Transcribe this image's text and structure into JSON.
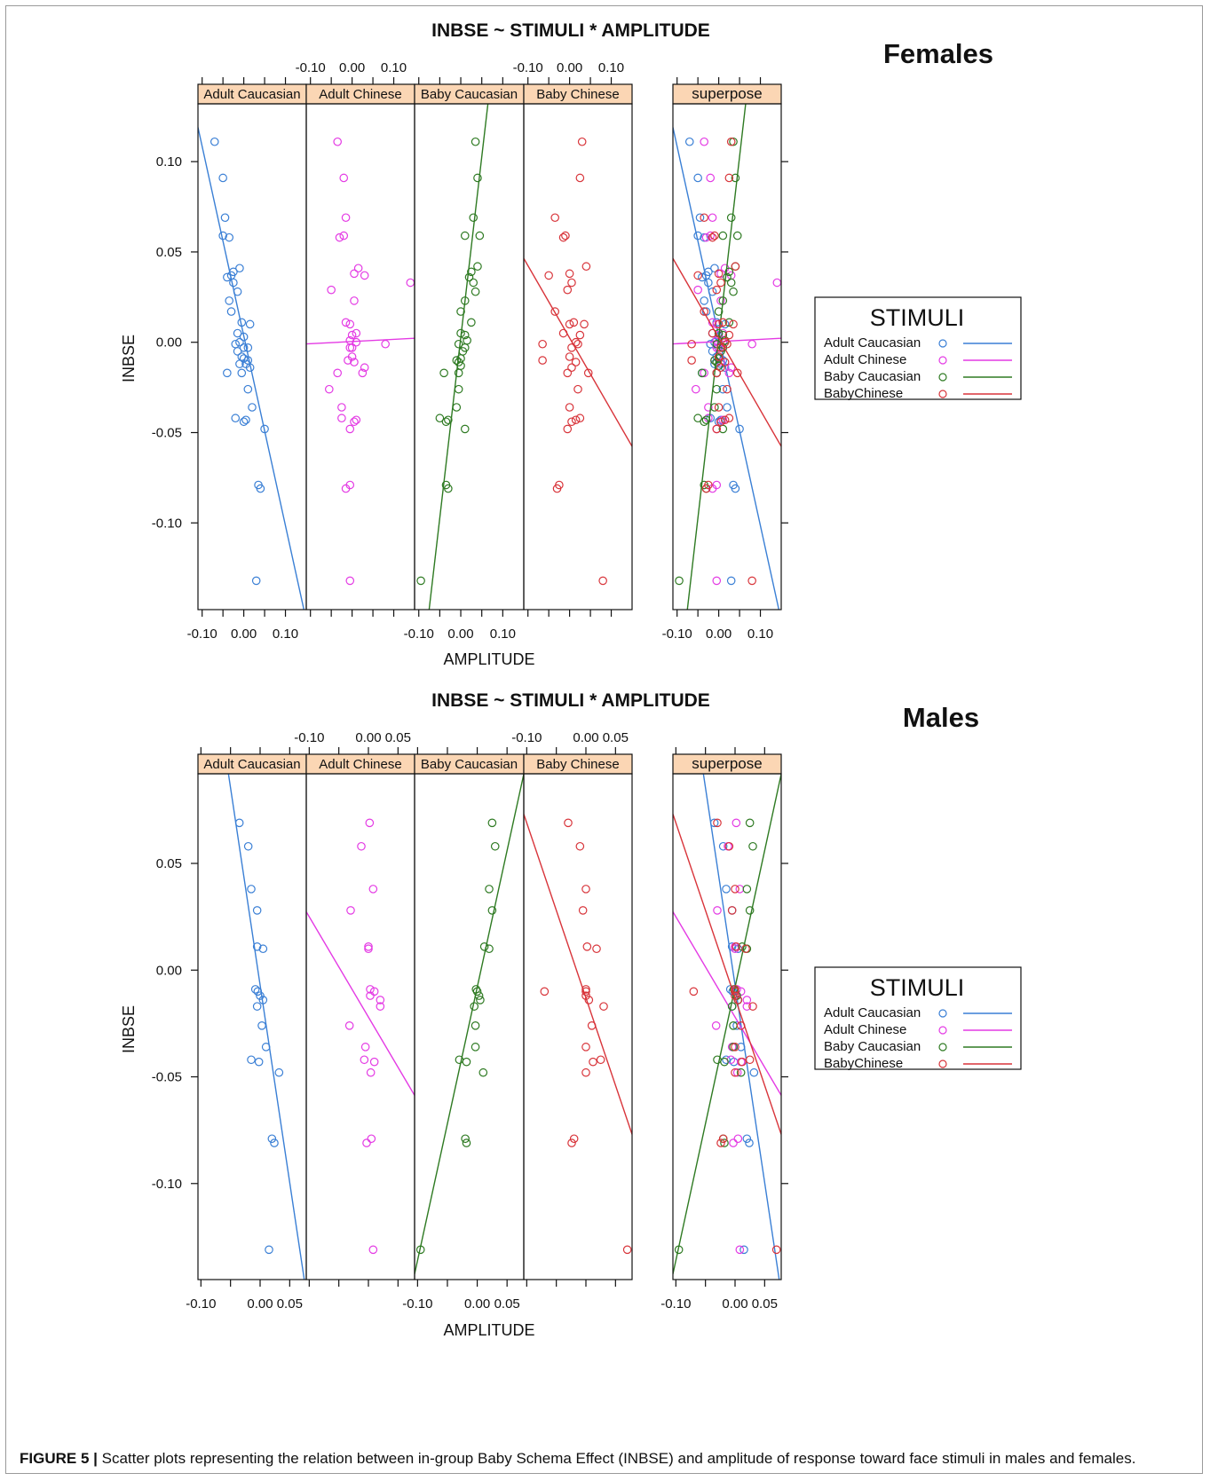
{
  "caption": {
    "label": "FIGURE 5 |",
    "text": "Scatter plots representing the relation between in-group Baby Schema Effect (INBSE) and amplitude of response toward face stimuli in males and females."
  },
  "colors": {
    "adult_caucasian": "#3a7fd5",
    "adult_chinese": "#e43ae4",
    "baby_caucasian": "#2e7a22",
    "baby_chinese": "#d8343a",
    "strip": "#fbd6b4"
  },
  "chart_data": [
    {
      "type": "scatter",
      "title": "INBSE ~ STIMULI * AMPLITUDE",
      "group_label": "Females",
      "xlabel": "AMPLITUDE",
      "ylabel": "INBSE",
      "xlim": [
        -0.11,
        0.15
      ],
      "ylim": [
        -0.148,
        0.132
      ],
      "x_ticks_text": [
        "-0.10",
        "0.00",
        "0.10"
      ],
      "y_ticks": [
        0.1,
        0.05,
        0.0,
        -0.05,
        -0.1
      ],
      "y_ticks_text": [
        "0.10",
        "0.05",
        "0.00",
        "-0.05",
        "-0.10"
      ],
      "panels": [
        "Adult Caucasian",
        "Adult Chinese",
        "Baby Caucasian",
        "Baby Chinese",
        "superpose"
      ],
      "legend": {
        "title": "STIMULI",
        "entries": [
          "Adult Caucasian",
          "Adult Chinese",
          "Baby Caucasian",
          "BabyChinese"
        ],
        "position": "right"
      },
      "series": [
        {
          "name": "Adult Caucasian",
          "line": {
            "intercept": 0.0035,
            "slope": -1.05
          },
          "points": [
            [
              -0.07,
              0.111
            ],
            [
              -0.05,
              0.091
            ],
            [
              -0.045,
              0.069
            ],
            [
              -0.05,
              0.059
            ],
            [
              -0.035,
              0.058
            ],
            [
              -0.04,
              0.036
            ],
            [
              -0.03,
              0.037
            ],
            [
              -0.025,
              0.039
            ],
            [
              -0.025,
              0.033
            ],
            [
              -0.015,
              0.028
            ],
            [
              -0.01,
              0.041
            ],
            [
              -0.035,
              0.023
            ],
            [
              -0.03,
              0.017
            ],
            [
              -0.005,
              0.011
            ],
            [
              0.015,
              0.01
            ],
            [
              -0.015,
              0.005
            ],
            [
              0.0,
              0.003
            ],
            [
              -0.01,
              0.0
            ],
            [
              -0.02,
              -0.001
            ],
            [
              0.0,
              -0.003
            ],
            [
              0.01,
              -0.003
            ],
            [
              -0.015,
              -0.005
            ],
            [
              -0.005,
              -0.008
            ],
            [
              0.0,
              -0.009
            ],
            [
              0.01,
              -0.01
            ],
            [
              -0.01,
              -0.012
            ],
            [
              0.005,
              -0.012
            ],
            [
              0.015,
              -0.014
            ],
            [
              -0.04,
              -0.017
            ],
            [
              -0.005,
              -0.017
            ],
            [
              0.01,
              -0.026
            ],
            [
              0.02,
              -0.036
            ],
            [
              -0.02,
              -0.042
            ],
            [
              0.005,
              -0.043
            ],
            [
              0.0,
              -0.044
            ],
            [
              0.05,
              -0.048
            ],
            [
              0.035,
              -0.079
            ],
            [
              0.04,
              -0.081
            ],
            [
              0.03,
              -0.132
            ]
          ]
        },
        {
          "name": "Adult Chinese",
          "line": {
            "intercept": 0.0004,
            "slope": 0.012
          },
          "points": [
            [
              -0.035,
              0.111
            ],
            [
              -0.02,
              0.091
            ],
            [
              -0.015,
              0.069
            ],
            [
              -0.02,
              0.059
            ],
            [
              -0.03,
              0.058
            ],
            [
              0.03,
              0.037
            ],
            [
              0.015,
              0.041
            ],
            [
              0.005,
              0.038
            ],
            [
              -0.05,
              0.029
            ],
            [
              0.005,
              0.023
            ],
            [
              -0.015,
              0.011
            ],
            [
              -0.005,
              0.01
            ],
            [
              0.01,
              0.0
            ],
            [
              -0.005,
              0.001
            ],
            [
              0.0,
              0.004
            ],
            [
              0.01,
              0.005
            ],
            [
              0.14,
              0.033
            ],
            [
              0.08,
              -0.001
            ],
            [
              -0.005,
              -0.003
            ],
            [
              0.0,
              -0.008
            ],
            [
              0.005,
              -0.011
            ],
            [
              -0.01,
              -0.01
            ],
            [
              0.0,
              -0.003
            ],
            [
              0.03,
              -0.014
            ],
            [
              0.025,
              -0.017
            ],
            [
              -0.035,
              -0.017
            ],
            [
              -0.055,
              -0.026
            ],
            [
              -0.025,
              -0.036
            ],
            [
              -0.025,
              -0.042
            ],
            [
              0.01,
              -0.043
            ],
            [
              0.005,
              -0.044
            ],
            [
              -0.005,
              -0.048
            ],
            [
              -0.005,
              -0.079
            ],
            [
              -0.015,
              -0.081
            ],
            [
              -0.005,
              -0.132
            ]
          ]
        },
        {
          "name": "Baby Caucasian",
          "line": {
            "intercept": 0.0027,
            "slope": 2.0
          },
          "points": [
            [
              0.035,
              0.111
            ],
            [
              0.04,
              0.091
            ],
            [
              0.03,
              0.069
            ],
            [
              0.045,
              0.059
            ],
            [
              0.01,
              0.059
            ],
            [
              0.04,
              0.042
            ],
            [
              0.025,
              0.039
            ],
            [
              0.02,
              0.036
            ],
            [
              0.03,
              0.033
            ],
            [
              0.035,
              0.028
            ],
            [
              0.01,
              0.023
            ],
            [
              0.0,
              0.017
            ],
            [
              0.025,
              0.011
            ],
            [
              0.0,
              0.005
            ],
            [
              0.01,
              0.004
            ],
            [
              0.015,
              0.001
            ],
            [
              -0.005,
              -0.001
            ],
            [
              0.01,
              -0.003
            ],
            [
              0.005,
              -0.005
            ],
            [
              0.0,
              -0.009
            ],
            [
              -0.01,
              -0.01
            ],
            [
              -0.005,
              -0.011
            ],
            [
              0.0,
              -0.013
            ],
            [
              -0.005,
              -0.017
            ],
            [
              -0.04,
              -0.017
            ],
            [
              -0.005,
              -0.026
            ],
            [
              -0.01,
              -0.036
            ],
            [
              -0.05,
              -0.042
            ],
            [
              -0.03,
              -0.043
            ],
            [
              -0.035,
              -0.044
            ],
            [
              0.01,
              -0.048
            ],
            [
              -0.035,
              -0.079
            ],
            [
              -0.03,
              -0.081
            ],
            [
              -0.095,
              -0.132
            ]
          ]
        },
        {
          "name": "BabyChinese",
          "line": {
            "intercept": 0.0024,
            "slope": -0.4
          },
          "points": [
            [
              0.03,
              0.111
            ],
            [
              0.025,
              0.091
            ],
            [
              -0.035,
              0.069
            ],
            [
              -0.01,
              0.059
            ],
            [
              -0.015,
              0.058
            ],
            [
              0.04,
              0.042
            ],
            [
              -0.05,
              0.037
            ],
            [
              0.0,
              0.038
            ],
            [
              0.005,
              0.033
            ],
            [
              -0.005,
              0.029
            ],
            [
              -0.035,
              0.017
            ],
            [
              0.01,
              0.011
            ],
            [
              0.0,
              0.01
            ],
            [
              0.035,
              0.01
            ],
            [
              -0.015,
              0.005
            ],
            [
              0.025,
              0.004
            ],
            [
              0.015,
              0.0
            ],
            [
              0.02,
              -0.001
            ],
            [
              -0.065,
              -0.001
            ],
            [
              0.005,
              -0.003
            ],
            [
              0.0,
              -0.008
            ],
            [
              -0.065,
              -0.01
            ],
            [
              0.015,
              -0.011
            ],
            [
              0.005,
              -0.014
            ],
            [
              0.045,
              -0.017
            ],
            [
              -0.005,
              -0.017
            ],
            [
              0.02,
              -0.026
            ],
            [
              0.0,
              -0.036
            ],
            [
              0.025,
              -0.042
            ],
            [
              0.015,
              -0.043
            ],
            [
              0.005,
              -0.044
            ],
            [
              -0.005,
              -0.048
            ],
            [
              -0.025,
              -0.079
            ],
            [
              -0.03,
              -0.081
            ],
            [
              0.08,
              -0.132
            ]
          ]
        }
      ]
    },
    {
      "type": "scatter",
      "title": "INBSE ~ STIMULI * AMPLITUDE",
      "group_label": "Males",
      "xlabel": "AMPLITUDE",
      "ylabel": "INBSE",
      "xlim": [
        -0.105,
        0.078
      ],
      "ylim": [
        -0.145,
        0.092
      ],
      "x_ticks_text": [
        "-0.10",
        "0.00",
        "0.05"
      ],
      "y_ticks": [
        0.05,
        0.0,
        -0.05,
        -0.1
      ],
      "y_ticks_text": [
        "0.05",
        "0.00",
        "-0.05",
        "-0.10"
      ],
      "panels": [
        "Adult Caucasian",
        "Adult Chinese",
        "Baby Caucasian",
        "Baby Chinese",
        "superpose"
      ],
      "legend": {
        "title": "STIMULI",
        "entries": [
          "Adult Caucasian",
          "Adult Chinese",
          "Baby Caucasian",
          "BabyChinese"
        ],
        "position": "right"
      },
      "series": [
        {
          "name": "Adult Caucasian",
          "line": {
            "intercept": -0.007,
            "slope": -1.85
          },
          "points": [
            [
              -0.035,
              0.069
            ],
            [
              -0.02,
              0.058
            ],
            [
              -0.015,
              0.038
            ],
            [
              -0.005,
              0.028
            ],
            [
              -0.005,
              0.011
            ],
            [
              0.005,
              0.01
            ],
            [
              -0.008,
              -0.009
            ],
            [
              -0.004,
              -0.01
            ],
            [
              0.0,
              -0.012
            ],
            [
              0.005,
              -0.014
            ],
            [
              -0.005,
              -0.017
            ],
            [
              0.003,
              -0.026
            ],
            [
              0.01,
              -0.036
            ],
            [
              -0.015,
              -0.042
            ],
            [
              -0.002,
              -0.043
            ],
            [
              0.032,
              -0.048
            ],
            [
              0.02,
              -0.079
            ],
            [
              0.024,
              -0.081
            ],
            [
              0.015,
              -0.131
            ]
          ]
        },
        {
          "name": "Adult Chinese",
          "line": {
            "intercept": -0.022,
            "slope": -0.47
          },
          "points": [
            [
              0.002,
              0.069
            ],
            [
              -0.012,
              0.058
            ],
            [
              0.008,
              0.038
            ],
            [
              -0.03,
              0.028
            ],
            [
              0.0,
              0.011
            ],
            [
              0.0,
              0.01
            ],
            [
              0.003,
              -0.009
            ],
            [
              0.01,
              -0.01
            ],
            [
              0.003,
              -0.012
            ],
            [
              0.02,
              -0.014
            ],
            [
              0.02,
              -0.017
            ],
            [
              -0.032,
              -0.026
            ],
            [
              -0.005,
              -0.036
            ],
            [
              -0.007,
              -0.042
            ],
            [
              0.01,
              -0.043
            ],
            [
              0.004,
              -0.048
            ],
            [
              0.005,
              -0.079
            ],
            [
              -0.003,
              -0.081
            ],
            [
              0.008,
              -0.131
            ]
          ]
        },
        {
          "name": "Baby Caucasian",
          "line": {
            "intercept": -0.008,
            "slope": 1.28
          },
          "points": [
            [
              0.025,
              0.069
            ],
            [
              0.03,
              0.058
            ],
            [
              0.02,
              0.038
            ],
            [
              0.025,
              0.028
            ],
            [
              0.012,
              0.011
            ],
            [
              0.02,
              0.01
            ],
            [
              -0.002,
              -0.009
            ],
            [
              0.0,
              -0.01
            ],
            [
              0.003,
              -0.012
            ],
            [
              0.005,
              -0.014
            ],
            [
              -0.005,
              -0.017
            ],
            [
              -0.003,
              -0.026
            ],
            [
              -0.003,
              -0.036
            ],
            [
              -0.03,
              -0.042
            ],
            [
              -0.018,
              -0.043
            ],
            [
              0.01,
              -0.048
            ],
            [
              -0.02,
              -0.079
            ],
            [
              -0.018,
              -0.081
            ],
            [
              -0.095,
              -0.131
            ]
          ]
        },
        {
          "name": "BabyChinese",
          "line": {
            "intercept": -0.013,
            "slope": -0.82
          },
          "points": [
            [
              -0.03,
              0.069
            ],
            [
              -0.01,
              0.058
            ],
            [
              0.0,
              0.038
            ],
            [
              -0.005,
              0.028
            ],
            [
              0.002,
              0.011
            ],
            [
              0.018,
              0.01
            ],
            [
              0.0,
              -0.009
            ],
            [
              0.0,
              -0.01
            ],
            [
              0.0,
              -0.012
            ],
            [
              0.005,
              -0.014
            ],
            [
              0.03,
              -0.017
            ],
            [
              -0.07,
              -0.01
            ],
            [
              0.01,
              -0.026
            ],
            [
              0.0,
              -0.036
            ],
            [
              0.025,
              -0.042
            ],
            [
              0.012,
              -0.043
            ],
            [
              0.0,
              -0.048
            ],
            [
              -0.02,
              -0.079
            ],
            [
              -0.024,
              -0.081
            ],
            [
              0.07,
              -0.131
            ]
          ]
        }
      ]
    }
  ]
}
